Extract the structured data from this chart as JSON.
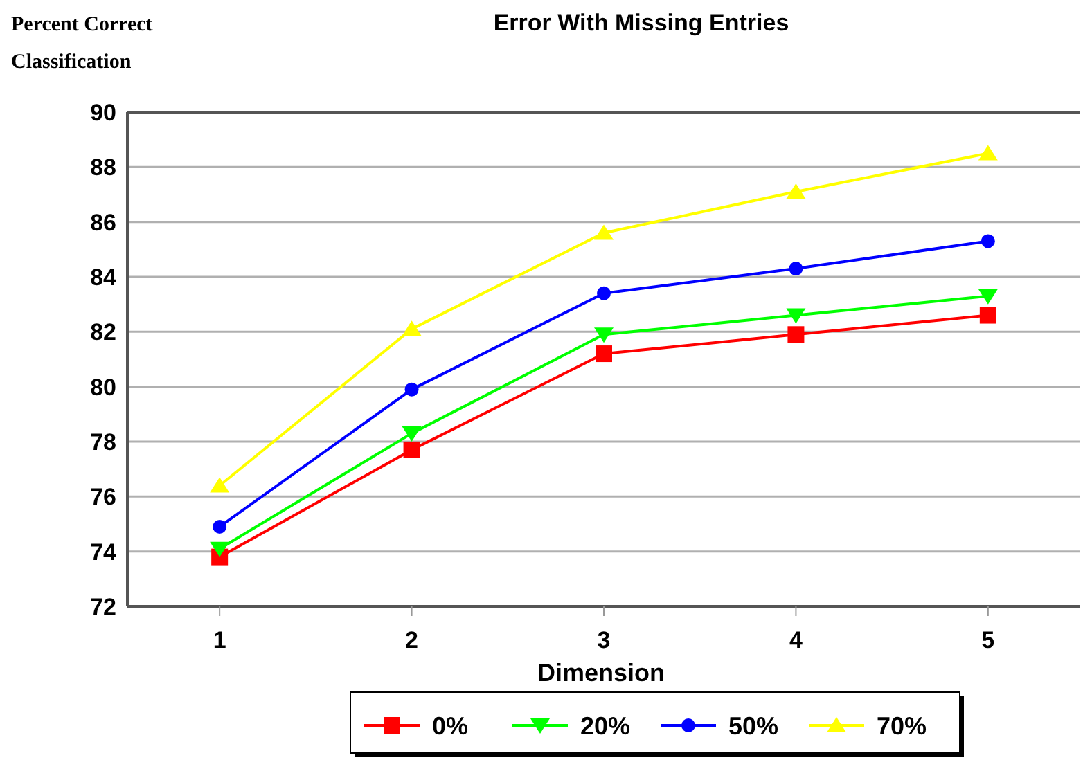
{
  "chart_data": {
    "type": "line",
    "title": "Error With Missing Entries",
    "xlabel": "Dimension",
    "ylabel": "Percent Correct Classification",
    "categories": [
      "1",
      "2",
      "3",
      "4",
      "5"
    ],
    "ylim": [
      72,
      90
    ],
    "yticks": [
      72,
      74,
      76,
      78,
      80,
      82,
      84,
      86,
      88,
      90
    ],
    "grid": "y",
    "legend": "bottom",
    "series": [
      {
        "name": "0%",
        "color": "#ff0000",
        "marker": "square",
        "values": [
          73.8,
          77.7,
          81.2,
          81.9,
          82.6
        ]
      },
      {
        "name": "20%",
        "color": "#00ff00",
        "marker": "triangle-down",
        "values": [
          74.1,
          78.3,
          81.9,
          82.6,
          83.3
        ]
      },
      {
        "name": "50%",
        "color": "#0000ff",
        "marker": "circle",
        "values": [
          74.9,
          79.9,
          83.4,
          84.3,
          85.3
        ]
      },
      {
        "name": "70%",
        "color": "#ffff00",
        "marker": "triangle",
        "values": [
          76.4,
          82.1,
          85.6,
          87.1,
          88.5
        ]
      }
    ]
  }
}
